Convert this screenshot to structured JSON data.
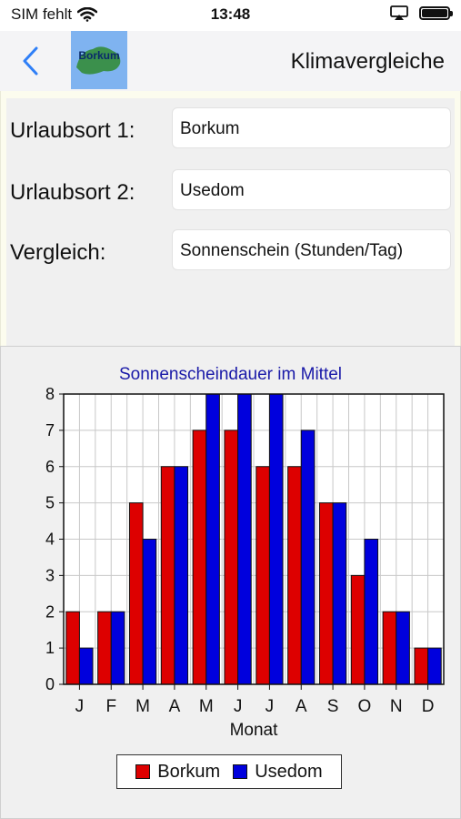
{
  "status_bar": {
    "carrier": "SIM fehlt",
    "time": "13:48",
    "icons": [
      "wifi-icon",
      "airplay-icon",
      "battery-icon"
    ]
  },
  "nav": {
    "back_icon": "chevron-left-icon",
    "logo_text": "Borkum",
    "title": "Klimavergleiche",
    "accent_color": "#2f7ff7"
  },
  "form": {
    "place1_label": "Urlaubsort 1:",
    "place1_value": "Borkum",
    "place2_label": "Urlaubsort 2:",
    "place2_value": "Usedom",
    "compare_label": "Vergleich:",
    "compare_value": "Sonnenschein (Stunden/Tag)"
  },
  "chart_data": {
    "type": "bar",
    "title": "Sonnenscheindauer im Mittel",
    "xlabel": "Monat",
    "ylabel": "",
    "categories": [
      "J",
      "F",
      "M",
      "A",
      "M",
      "J",
      "J",
      "A",
      "S",
      "O",
      "N",
      "D"
    ],
    "series": [
      {
        "name": "Borkum",
        "color": "#dd0000",
        "values": [
          2,
          2,
          5,
          6,
          7,
          7,
          6,
          6,
          5,
          3,
          2,
          1
        ]
      },
      {
        "name": "Usedom",
        "color": "#0000dd",
        "values": [
          1,
          2,
          4,
          6,
          8,
          8,
          8,
          7,
          5,
          4,
          2,
          1
        ]
      }
    ],
    "ylim": [
      0,
      8
    ],
    "yticks": [
      0,
      1,
      2,
      3,
      4,
      5,
      6,
      7,
      8
    ],
    "grid": true,
    "legend_position": "bottom"
  }
}
